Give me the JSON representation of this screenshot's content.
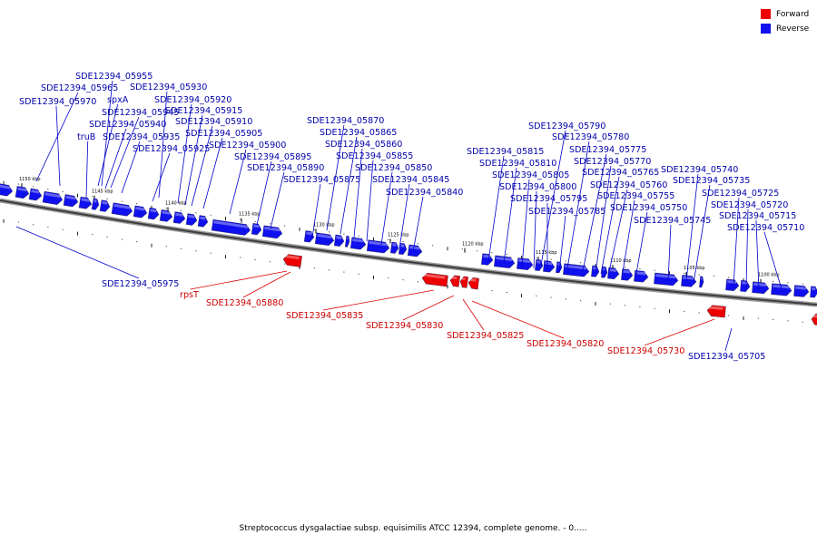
{
  "legend": {
    "forward": {
      "label": "Forward",
      "color": "#ee0000"
    },
    "reverse": {
      "label": "Reverse",
      "color": "#1010ee"
    }
  },
  "caption": "Streptococcus dysgalactiae subsp. equisimilis ATCC 12394, complete genome. - 0.....",
  "ticks": [
    "1150 kbp",
    "1145 kbp",
    "1140 kbp",
    "1135 kbp",
    "1130 kbp",
    "1125 kbp",
    "1120 kbp",
    "1115 kbp",
    "1110 kbp",
    "1105 kbp",
    "1100 kbp"
  ],
  "genes": [
    {
      "label": "SDE12394_05955",
      "strand": "reverse"
    },
    {
      "label": "SDE12394_05965",
      "strand": "reverse"
    },
    {
      "label": "SDE12394_05930",
      "strand": "reverse"
    },
    {
      "label": "SDE12394_05970",
      "strand": "reverse"
    },
    {
      "label": "spxA",
      "strand": "reverse"
    },
    {
      "label": "SDE12394_05920",
      "strand": "reverse"
    },
    {
      "label": "SDE12394_05945",
      "strand": "reverse"
    },
    {
      "label": "SDE12394_05915",
      "strand": "reverse"
    },
    {
      "label": "SDE12394_05940",
      "strand": "reverse"
    },
    {
      "label": "SDE12394_05910",
      "strand": "reverse"
    },
    {
      "label": "truB",
      "strand": "reverse"
    },
    {
      "label": "SDE12394_05935",
      "strand": "reverse"
    },
    {
      "label": "SDE12394_05905",
      "strand": "reverse"
    },
    {
      "label": "SDE12394_05925",
      "strand": "reverse"
    },
    {
      "label": "SDE12394_05900",
      "strand": "reverse"
    },
    {
      "label": "SDE12394_05895",
      "strand": "reverse"
    },
    {
      "label": "SDE12394_05890",
      "strand": "reverse"
    },
    {
      "label": "SDE12394_05870",
      "strand": "reverse"
    },
    {
      "label": "SDE12394_05865",
      "strand": "reverse"
    },
    {
      "label": "SDE12394_05860",
      "strand": "reverse"
    },
    {
      "label": "SDE12394_05855",
      "strand": "reverse"
    },
    {
      "label": "SDE12394_05850",
      "strand": "reverse"
    },
    {
      "label": "SDE12394_05875",
      "strand": "reverse"
    },
    {
      "label": "SDE12394_05845",
      "strand": "reverse"
    },
    {
      "label": "SDE12394_05840",
      "strand": "reverse"
    },
    {
      "label": "SDE12394_05790",
      "strand": "reverse"
    },
    {
      "label": "SDE12394_05780",
      "strand": "reverse"
    },
    {
      "label": "SDE12394_05815",
      "strand": "reverse"
    },
    {
      "label": "SDE12394_05775",
      "strand": "reverse"
    },
    {
      "label": "SDE12394_05810",
      "strand": "reverse"
    },
    {
      "label": "SDE12394_05770",
      "strand": "reverse"
    },
    {
      "label": "SDE12394_05805",
      "strand": "reverse"
    },
    {
      "label": "SDE12394_05765",
      "strand": "reverse"
    },
    {
      "label": "SDE12394_05740",
      "strand": "reverse"
    },
    {
      "label": "SDE12394_05800",
      "strand": "reverse"
    },
    {
      "label": "SDE12394_05760",
      "strand": "reverse"
    },
    {
      "label": "SDE12394_05735",
      "strand": "reverse"
    },
    {
      "label": "SDE12394_05795",
      "strand": "reverse"
    },
    {
      "label": "SDE12394_05755",
      "strand": "reverse"
    },
    {
      "label": "SDE12394_05725",
      "strand": "reverse"
    },
    {
      "label": "SDE12394_05750",
      "strand": "reverse"
    },
    {
      "label": "SDE12394_05720",
      "strand": "reverse"
    },
    {
      "label": "SDE12394_05785",
      "strand": "reverse"
    },
    {
      "label": "SDE12394_05745",
      "strand": "reverse"
    },
    {
      "label": "SDE12394_05715",
      "strand": "reverse"
    },
    {
      "label": "SDE12394_05710",
      "strand": "reverse"
    },
    {
      "label": "SDE12394_05975",
      "strand": "reverse"
    },
    {
      "label": "SDE12394_05705",
      "strand": "reverse"
    },
    {
      "label": "rpsT",
      "strand": "forward"
    },
    {
      "label": "SDE12394_05880",
      "strand": "forward"
    },
    {
      "label": "SDE12394_05835",
      "strand": "forward"
    },
    {
      "label": "SDE12394_05830",
      "strand": "forward"
    },
    {
      "label": "SDE12394_05825",
      "strand": "forward"
    },
    {
      "label": "SDE12394_05820",
      "strand": "forward"
    },
    {
      "label": "SDE12394_05730",
      "strand": "forward"
    }
  ]
}
